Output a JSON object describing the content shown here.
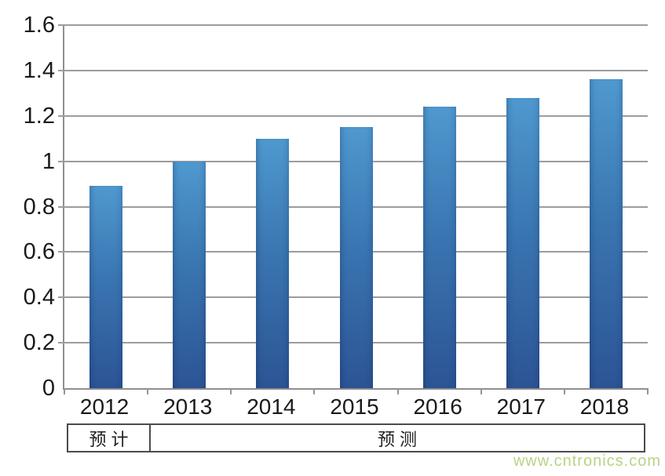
{
  "chart_data": {
    "type": "bar",
    "title": "",
    "xlabel": "",
    "ylabel": "",
    "categories": [
      "2012",
      "2013",
      "2014",
      "2015",
      "2016",
      "2017",
      "2018"
    ],
    "values": [
      0.89,
      1.0,
      1.1,
      1.15,
      1.24,
      1.28,
      1.36
    ],
    "ylim": [
      0,
      1.6
    ],
    "ytick_step": 0.2,
    "ytick_labels": [
      "1.6",
      "1.4",
      "1.2",
      "1",
      "0.8",
      "0.6",
      "0.4",
      "0.2",
      "0"
    ],
    "grid": true,
    "legend": null,
    "bar_color_top": "#4f99cf",
    "bar_color_bottom": "#2c5494",
    "gridline_color": "#9c9c9c",
    "axis_color": "#8f8f8f"
  },
  "footer_band": {
    "cells": [
      {
        "label": "预计",
        "columns_spanned": 1
      },
      {
        "label": "预测",
        "columns_spanned": 6
      }
    ],
    "border_color": "#4b4b4b"
  },
  "watermark": {
    "text": "www.cntronics.com",
    "color": "#b6d584"
  }
}
